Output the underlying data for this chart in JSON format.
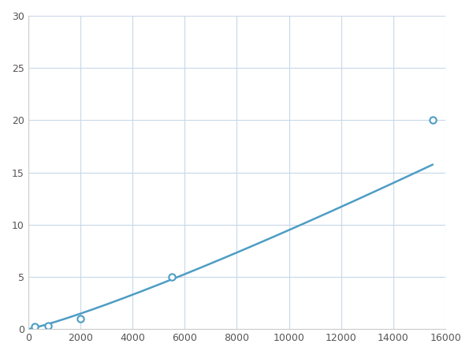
{
  "x": [
    250,
    750,
    2000,
    5500,
    15500
  ],
  "y": [
    0.2,
    0.35,
    1.0,
    5.0,
    20.0
  ],
  "line_color": "#4d9dc4",
  "marker_color": "#4d9dc4",
  "marker_size": 6,
  "line_width": 1.8,
  "xlim": [
    0,
    16000
  ],
  "ylim": [
    0,
    30
  ],
  "xticks": [
    0,
    2000,
    4000,
    6000,
    8000,
    10000,
    12000,
    14000,
    16000
  ],
  "yticks": [
    0,
    5,
    10,
    15,
    20,
    25,
    30
  ],
  "grid_color": "#c8d8e8",
  "background_color": "#ffffff",
  "figsize": [
    6.0,
    4.5
  ],
  "dpi": 100
}
